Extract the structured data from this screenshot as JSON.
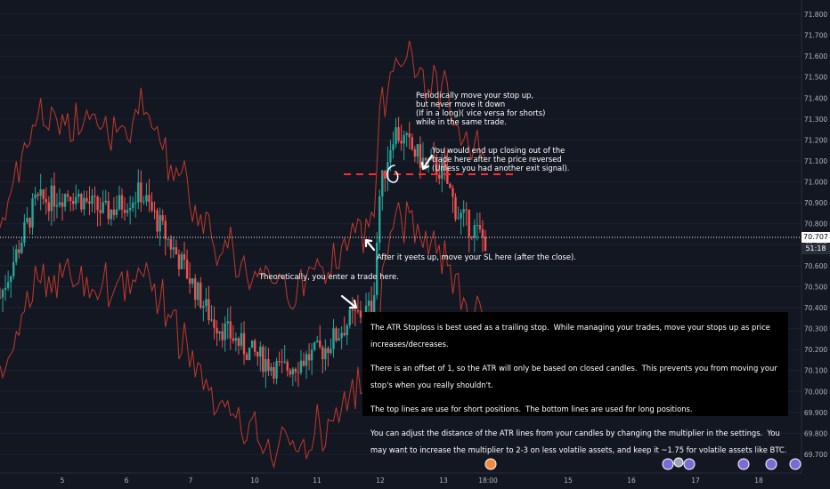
{
  "chart_data": {
    "type": "candlestick",
    "ylim": [
      69.63,
      71.86
    ],
    "y_ticks": [
      "71.800",
      "71.700",
      "71.600",
      "71.500",
      "71.400",
      "71.300",
      "71.200",
      "71.100",
      "71.000",
      "70.900",
      "70.800",
      "70.700",
      "70.600",
      "70.500",
      "70.400",
      "70.300",
      "70.200",
      "70.100",
      "70.000",
      "69.900",
      "69.800",
      "69.700"
    ],
    "x_ticks": [
      "5",
      "6",
      "7",
      "8",
      "9",
      "10",
      "11",
      "12",
      "13",
      "18:00",
      "15",
      "16",
      "17",
      "18"
    ],
    "current_price": "70.707",
    "countdown": "51:18",
    "stop_level": 71.0,
    "colors": {
      "bg": "#131722",
      "up": "#26a69a",
      "down": "#ef5350",
      "bands": "#c0392b",
      "stop_line": "#ff2b2b",
      "dotted": "#ffffff"
    },
    "candle_summary": [
      {
        "x": 0.0,
        "close": 70.45
      },
      {
        "x": 0.5,
        "close": 70.9
      },
      {
        "x": 1.0,
        "close": 70.95
      },
      {
        "x": 1.5,
        "close": 70.85
      },
      {
        "x": 2.0,
        "close": 70.95
      },
      {
        "x": 2.6,
        "close": 70.6
      },
      {
        "x": 3.0,
        "close": 70.35
      },
      {
        "x": 3.5,
        "close": 70.2
      },
      {
        "x": 4.0,
        "close": 70.1
      },
      {
        "x": 4.6,
        "close": 70.2
      },
      {
        "x": 5.0,
        "close": 70.35
      },
      {
        "x": 5.3,
        "close": 70.4
      },
      {
        "x": 5.4,
        "close": 70.95
      },
      {
        "x": 5.6,
        "close": 71.25
      },
      {
        "x": 6.0,
        "close": 71.1
      },
      {
        "x": 6.3,
        "close": 71.05
      },
      {
        "x": 6.5,
        "close": 70.85
      },
      {
        "x": 6.9,
        "close": 70.72
      }
    ]
  },
  "annotations": {
    "stop_advice": [
      "Periodically move your stop up,",
      "but never move it down",
      "(If in a long)( vice versa for shorts)",
      "while in the same trade."
    ],
    "close_out": [
      "You would end up closing out of the",
      "trade here after the price reversed",
      "(Unless you had another exit signal)."
    ],
    "move_sl": "After it yeets up, move your SL here (after the close).",
    "entry": "Theoretically, you enter a trade here.",
    "notes": [
      "The ATR Stoploss is best used as a trailing stop.",
      "While managing your trades, move your stops up as price increases/decreases.",
      "There is an offset of 1, so the ATR will only be based on closed candles.",
      "This prevents you from moving your stop's when you really shouldn't.",
      "The top lines are use for short positions.",
      "The bottom lines are used for long positions.",
      "You can adjust the distance of the ATR lines from your candles by changing the multiplier in the settings.",
      "You may want to increase the multiplier to 2-3 on less volatile assets, and keep it ~1.75 for volatile assets like BTC."
    ]
  }
}
